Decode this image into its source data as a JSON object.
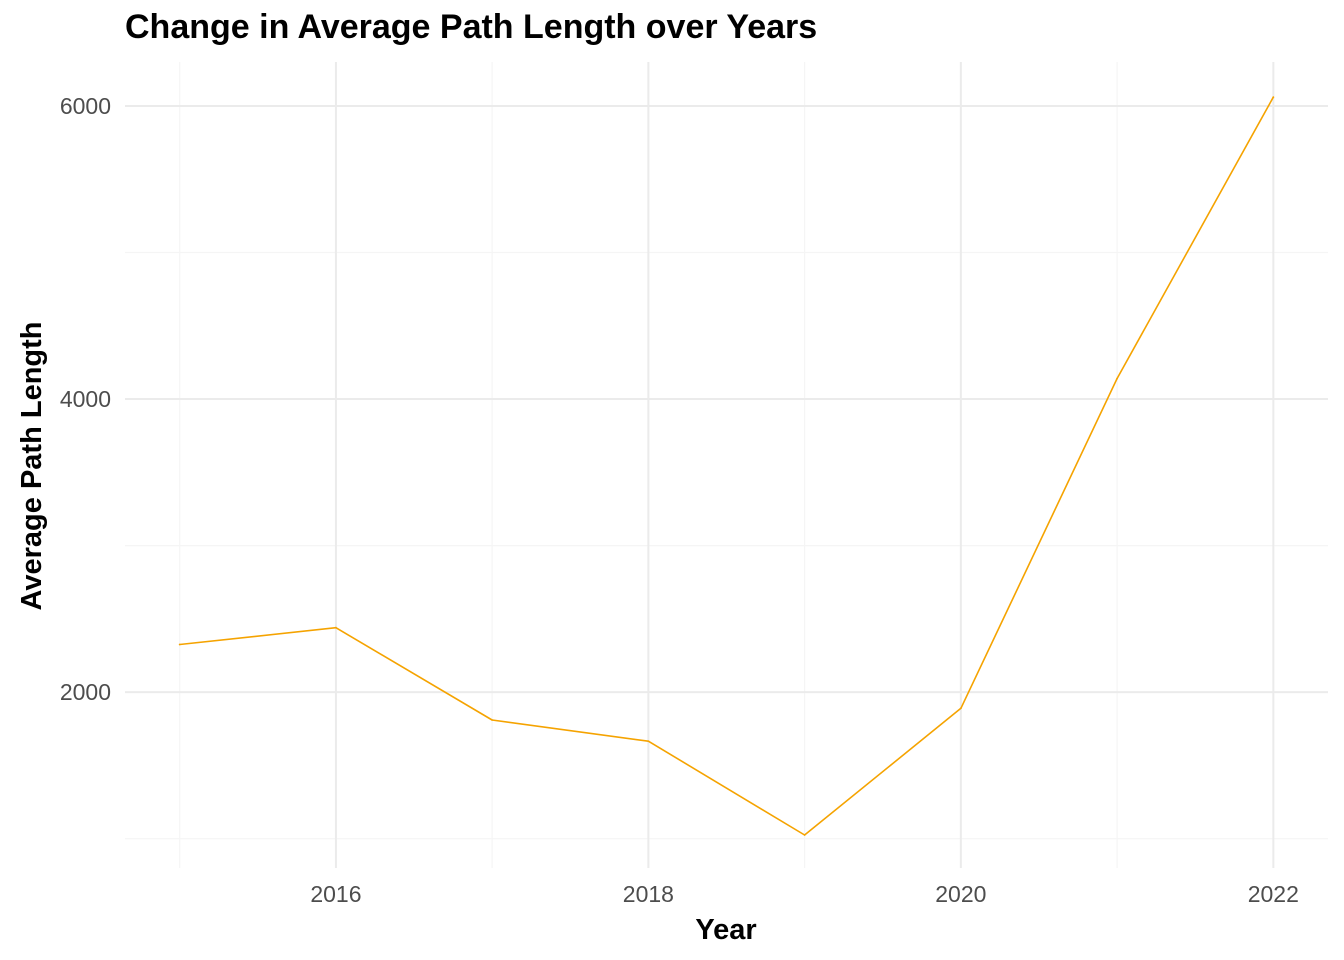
{
  "chart_data": {
    "type": "line",
    "title": "Change in Average Path Length over Years",
    "xlabel": "Year",
    "ylabel": "Average Path Length",
    "x": [
      2015,
      2016,
      2017,
      2018,
      2019,
      2020,
      2021,
      2022
    ],
    "series": [
      {
        "values": [
          2325,
          2440,
          1810,
          1665,
          1025,
          1890,
          4140,
          6060
        ]
      }
    ],
    "xlim": [
      2014.65,
      2022.35
    ],
    "ylim": [
      800,
      6300
    ],
    "x_major_ticks": [
      2016,
      2018,
      2020,
      2022
    ],
    "x_minor_ticks": [
      2015,
      2017,
      2019,
      2021
    ],
    "y_major_ticks": [
      2000,
      4000,
      6000
    ],
    "y_minor_ticks": [
      1000,
      3000,
      5000
    ],
    "grid": true,
    "legend": "none",
    "colors": {
      "line": "#F5A300",
      "grid_major": "#EBEBEB",
      "grid_minor": "#F5F5F5"
    }
  }
}
